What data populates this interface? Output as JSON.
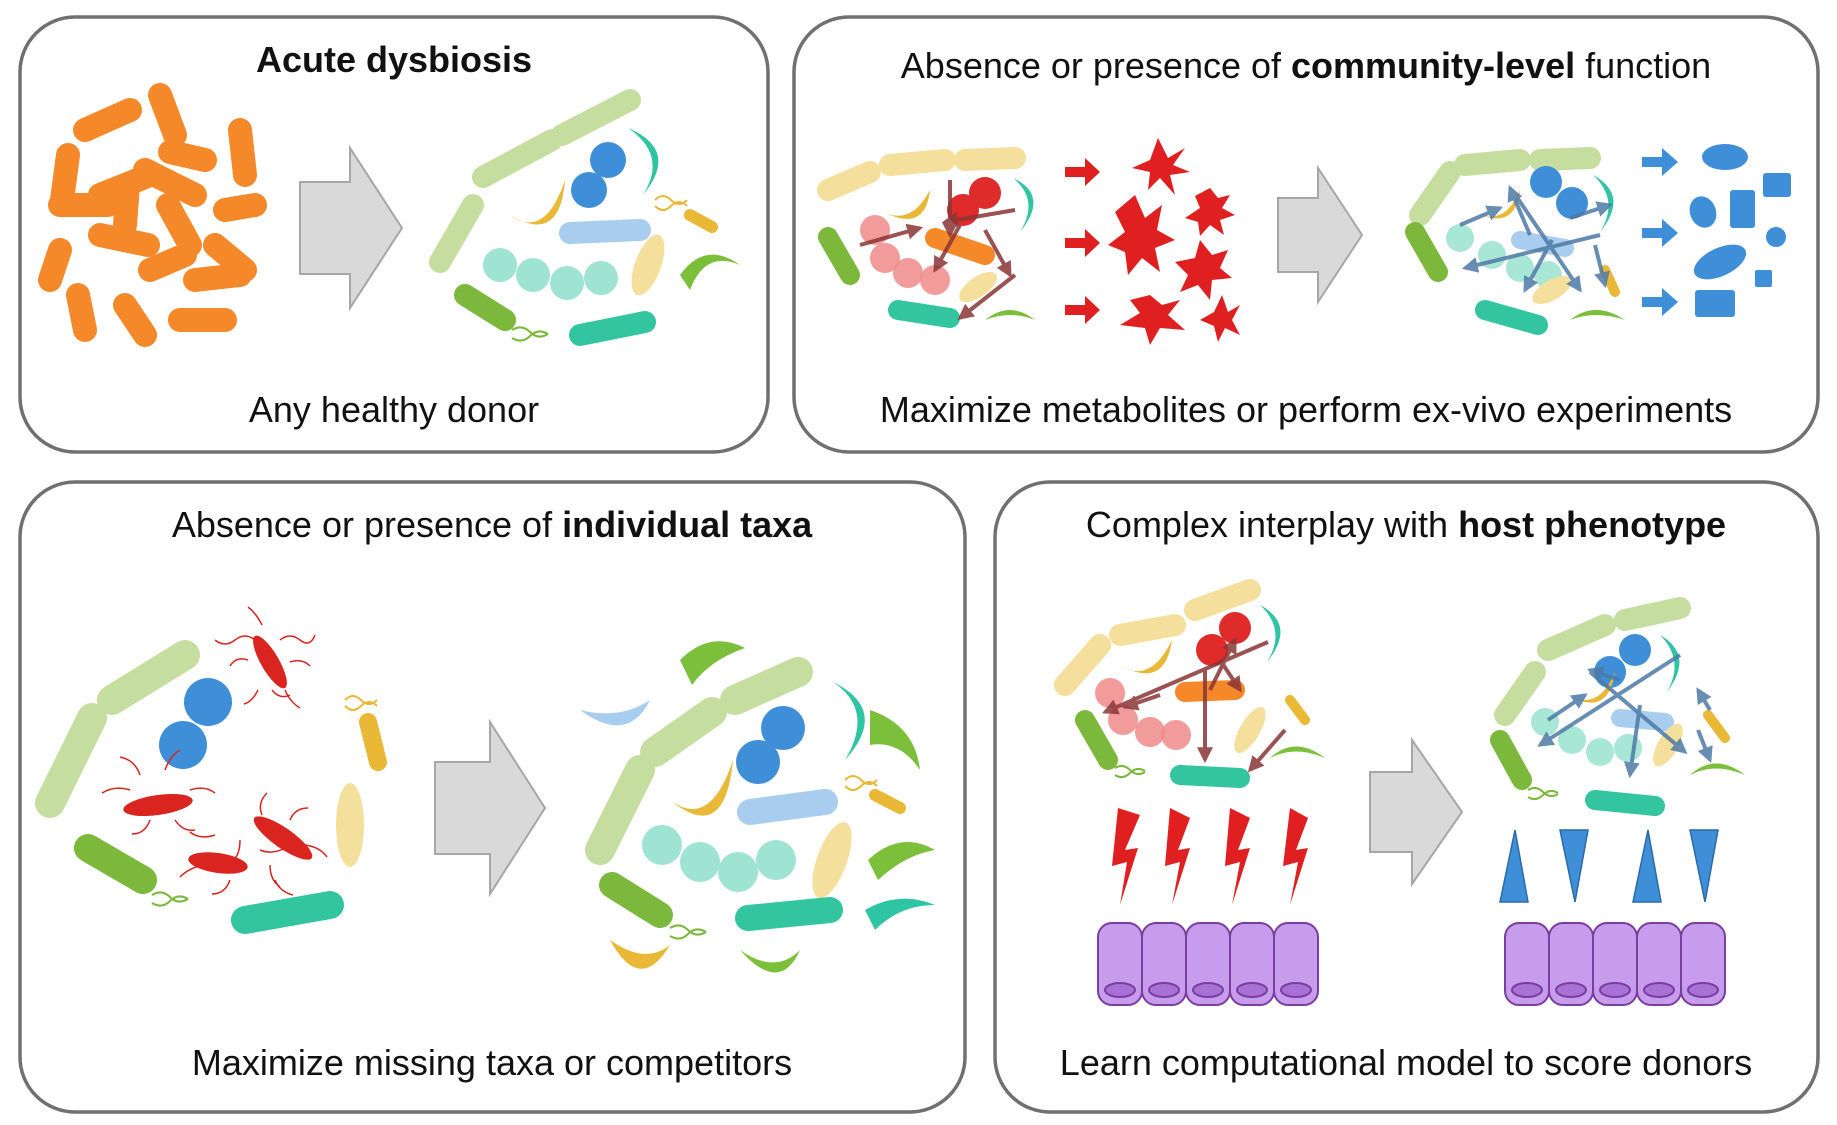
{
  "panels": [
    {
      "id": "acute",
      "title_prefix": "",
      "title_bold": "Acute dysbiosis",
      "title_suffix": "",
      "footer": "Any healthy donor"
    },
    {
      "id": "community",
      "title_prefix": "Absence or presence of ",
      "title_bold": "community-level",
      "title_suffix": " function",
      "footer": "Maximize metabolites or perform ex-vivo experiments"
    },
    {
      "id": "taxa",
      "title_prefix": "Absence or presence of ",
      "title_bold": "individual taxa",
      "title_suffix": "",
      "footer": "Maximize missing taxa or competitors"
    },
    {
      "id": "host",
      "title_prefix": "Complex interplay with ",
      "title_bold": "host phenotype",
      "title_suffix": "",
      "footer": "Learn computational model to score donors"
    }
  ],
  "colors": {
    "frame": "#707070",
    "arrow_fill": "#d9d9d9",
    "arrow_stroke": "#a6a6a6",
    "orange_rod": "#f5892a",
    "light_green_rod": "#c5dea0",
    "blue_coccus": "#3f8fd8",
    "teal_crescent": "#2fc4a3",
    "yellow_crescent": "#e8b836",
    "light_blue_rod": "#a9cdee",
    "mint_coccus": "#9fe3d2",
    "pale_yellow": "#f5df9c",
    "green_crescent": "#7bbf3a",
    "green_rod": "#7bb83c",
    "teal_rod": "#33c5a0",
    "red_coccus": "#e02b2b",
    "pink_coccus": "#f08a8a",
    "dark_red_arrow": "#9a4040",
    "red_star": "#e02020",
    "blue_metabolite": "#3f8fd8",
    "steel_arrow": "#5a86b0",
    "purple_cell": "#c79cec",
    "purple_stroke": "#7a3ea0",
    "red_bacteria": "#d9241f"
  },
  "icons": [
    "orange-bacillus-icon",
    "green-bacillus-icon",
    "blue-coccus-icon",
    "crescent-icon",
    "dna-helix-icon",
    "block-arrow-icon",
    "red-starburst-icon",
    "blue-metabolite-icon",
    "interaction-arrow-icon",
    "flagellated-pathogen-icon",
    "lightning-signal-icon",
    "triangle-signal-icon",
    "epithelial-cell-icon"
  ]
}
